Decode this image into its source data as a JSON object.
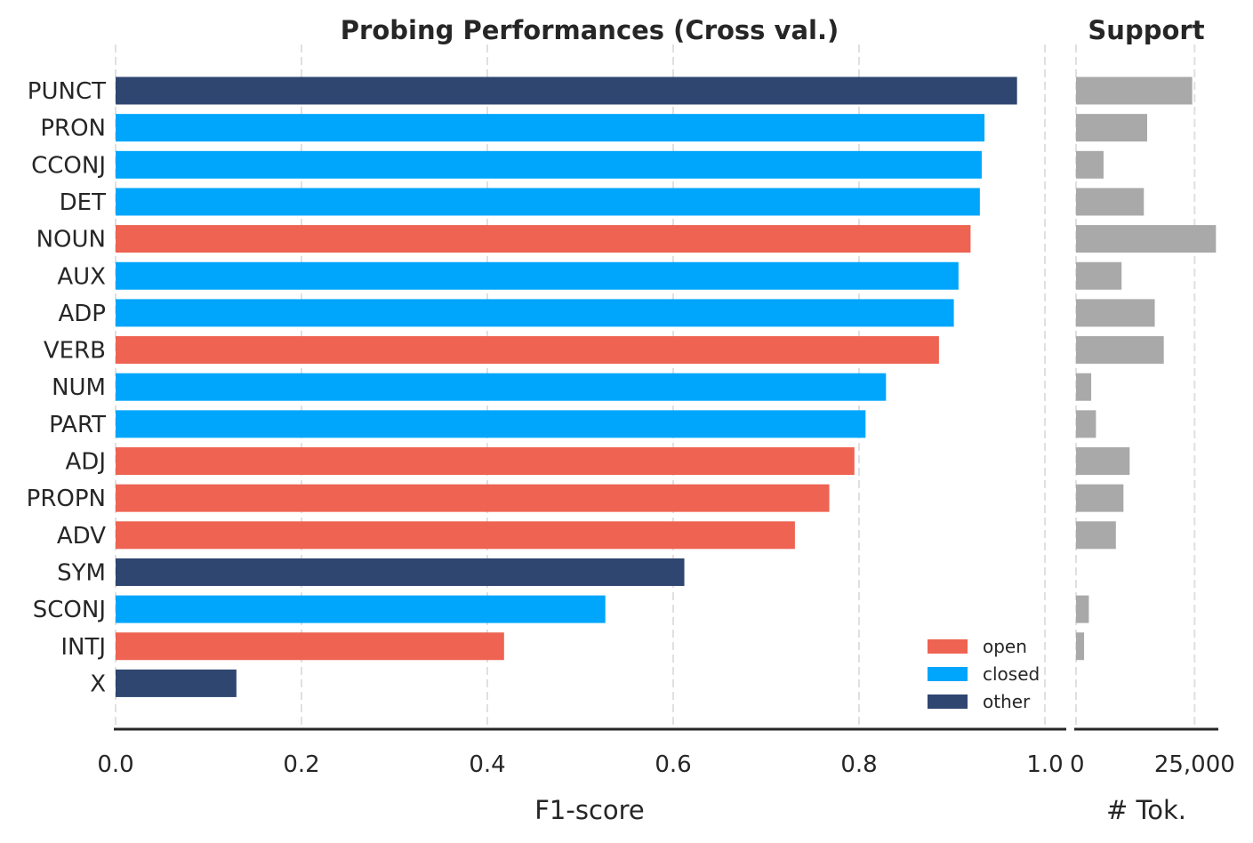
{
  "chart_data": [
    {
      "type": "bar",
      "orientation": "horizontal",
      "title": "Probing Performances (Cross val.)",
      "xlabel": "F1-score",
      "ylabel": "",
      "xlim": [
        0,
        1.0
      ],
      "xticks": [
        "0.0",
        "0.2",
        "0.4",
        "0.6",
        "0.8",
        "1.0"
      ],
      "grid": "vertical dashed",
      "categories": [
        "PUNCT",
        "PRON",
        "CCONJ",
        "DET",
        "NOUN",
        "AUX",
        "ADP",
        "VERB",
        "NUM",
        "PART",
        "ADJ",
        "PROPN",
        "ADV",
        "SYM",
        "SCONJ",
        "INTJ",
        "X"
      ],
      "values": [
        0.97,
        0.935,
        0.932,
        0.93,
        0.92,
        0.907,
        0.902,
        0.886,
        0.829,
        0.807,
        0.795,
        0.768,
        0.731,
        0.612,
        0.527,
        0.418,
        0.13
      ],
      "groups": [
        "other",
        "closed",
        "closed",
        "closed",
        "open",
        "closed",
        "closed",
        "open",
        "closed",
        "closed",
        "open",
        "open",
        "open",
        "other",
        "closed",
        "open",
        "other"
      ],
      "legend": {
        "placement": "lower-right",
        "entries": [
          {
            "name": "open",
            "color": "#ee6352"
          },
          {
            "name": "closed",
            "color": "#00a6fb"
          },
          {
            "name": "other",
            "color": "#2e4670"
          }
        ]
      }
    },
    {
      "type": "bar",
      "orientation": "horizontal",
      "title": "Support",
      "xlabel": "# Tok.",
      "xlim": [
        0,
        30000
      ],
      "xticks": [
        "0",
        "25,000"
      ],
      "grid": "vertical dashed",
      "color": "#a9a9a9",
      "categories": [
        "PUNCT",
        "PRON",
        "CCONJ",
        "DET",
        "NOUN",
        "AUX",
        "ADP",
        "VERB",
        "NUM",
        "PART",
        "ADJ",
        "PROPN",
        "ADV",
        "SYM",
        "SCONJ",
        "INTJ",
        "X"
      ],
      "values": [
        24500,
        15000,
        5800,
        14300,
        29500,
        9600,
        16600,
        18500,
        3200,
        4200,
        11300,
        10000,
        8400,
        0,
        2700,
        1700,
        0
      ]
    }
  ]
}
